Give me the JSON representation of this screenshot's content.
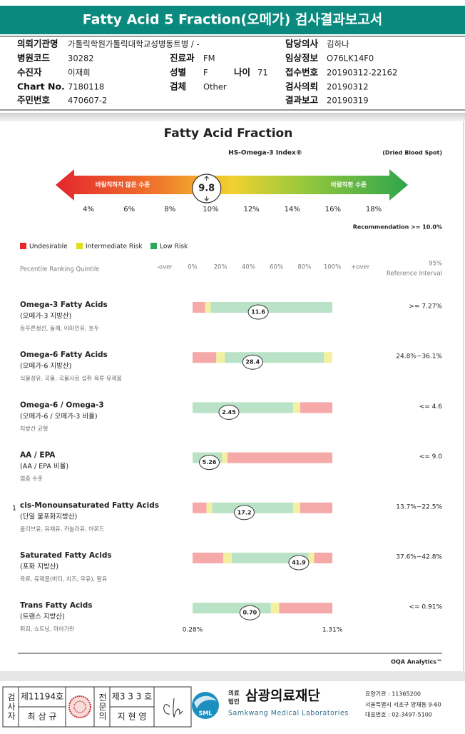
{
  "header": {
    "title": "Fatty Acid 5 Fraction(오메가) 검사결과보고서"
  },
  "info": [
    {
      "label": "의뢰기관명",
      "value": "가톨릭학원가톨릭대학교성병동트병 / -"
    },
    {
      "label": "담당의사",
      "value": "김하나"
    },
    {
      "label": "병원코드",
      "value": "30282"
    },
    {
      "label": "진료과",
      "value": "FM"
    },
    {
      "label": "임상정보",
      "value": "O76LK14F0"
    },
    {
      "label": "수진자",
      "value": "이재희"
    },
    {
      "label": "성별",
      "value": "F"
    },
    {
      "label": "나이",
      "value": "71"
    },
    {
      "label": "접수번호",
      "value": "20190312-22162"
    },
    {
      "label": "Chart No.",
      "value": "7180118"
    },
    {
      "label": "검체",
      "value": "Other"
    },
    {
      "label": "검사의뢰",
      "value": "20190312"
    },
    {
      "label": "주민번호",
      "value": "470607-2"
    },
    {
      "label": "결과보고",
      "value": "20190319"
    }
  ],
  "index_section": {
    "title": "Fatty Acid Fraction",
    "index_name": "HS-Omega-3 Index®",
    "sample": "(Dried Blood Spot)",
    "left_label": "바람직하지 않은 수준",
    "right_label": "바람직한 수준",
    "value": 9.8,
    "xlim": [
      4,
      18
    ],
    "ticks": [
      {
        "value": 4,
        "label": "4%"
      },
      {
        "value": 6,
        "label": "6%"
      },
      {
        "value": 8,
        "label": "8%"
      },
      {
        "value": 10,
        "label": "10%"
      },
      {
        "value": 12,
        "label": "12%"
      },
      {
        "value": 14,
        "label": "14%"
      },
      {
        "value": 16,
        "label": "16%"
      },
      {
        "value": 18,
        "label": "18%"
      }
    ],
    "recommendation": "Recommendation  >= 10.0%"
  },
  "legend": [
    {
      "label": "Undesirable",
      "color": "#e8282b"
    },
    {
      "label": "Intermediate Risk",
      "color": "#e3de1c"
    },
    {
      "label": "Low Risk",
      "color": "#2aa85a"
    }
  ],
  "table_header": {
    "ranking": "Pecentile Ranking Quintile",
    "axis": [
      {
        "value": -20,
        "label": "-over"
      },
      {
        "value": 0,
        "label": "0%"
      },
      {
        "value": 20,
        "label": "20%"
      },
      {
        "value": 40,
        "label": "40%"
      },
      {
        "value": 60,
        "label": "60%"
      },
      {
        "value": 80,
        "label": "80%"
      },
      {
        "value": 100,
        "label": "100%"
      },
      {
        "value": 120,
        "label": "+over"
      }
    ],
    "reference_top": "95%",
    "reference": "Reference Interval"
  },
  "rows": [
    {
      "name": "Omega-3 Fatty Acids",
      "korean": "(오메가-3 지방산)",
      "foods": "등푸른생선, 들깨, 아마인유, 호두",
      "zones": [
        {
          "color": "#f6a9a9",
          "from": 0,
          "to": 9
        },
        {
          "color": "#f3f1a1",
          "from": 9,
          "to": 13
        },
        {
          "color": "#b9e2c6",
          "from": 13,
          "to": 100
        }
      ],
      "value": 11.6,
      "percentile": 47,
      "reference": ">= 7.27%"
    },
    {
      "name": "Omega-6 Fatty Acids",
      "korean": "(오메가-6 지방산)",
      "foods": "식물성유, 곡물, 곡물사료 섭취 육류·유제품",
      "zones": [
        {
          "color": "#f6a9a9",
          "from": 0,
          "to": 17
        },
        {
          "color": "#f3f1a1",
          "from": 17,
          "to": 23
        },
        {
          "color": "#b9e2c6",
          "from": 23,
          "to": 94
        },
        {
          "color": "#f3f1a1",
          "from": 94,
          "to": 100
        }
      ],
      "value": 28.4,
      "percentile": 43,
      "reference": "24.8%~36.1%"
    },
    {
      "name": "Omega-6 / Omega-3",
      "korean": "(오메가-6 / 오메가-3 비율)",
      "foods": "지방산 균형",
      "zones": [
        {
          "color": "#b9e2c6",
          "from": 0,
          "to": 72
        },
        {
          "color": "#f3f1a1",
          "from": 72,
          "to": 77
        },
        {
          "color": "#f6a9a9",
          "from": 77,
          "to": 100
        }
      ],
      "value": 2.45,
      "percentile": 26,
      "reference": "<= 4.6"
    },
    {
      "name": "AA / EPA",
      "korean": "(AA / EPA 비율)",
      "foods": "염증 수준",
      "zones": [
        {
          "color": "#b9e2c6",
          "from": 0,
          "to": 21
        },
        {
          "color": "#f3f1a1",
          "from": 21,
          "to": 25
        },
        {
          "color": "#f6a9a9",
          "from": 25,
          "to": 100
        }
      ],
      "value": 5.26,
      "percentile": 12,
      "reference": "<= 9.0"
    },
    {
      "name": "cis-Monounsaturated Fatty Acids",
      "korean": "(단일 불포화지방산)",
      "foods": "올리브유, 유채유, 카놀라유, 아몬드",
      "note": "1",
      "zones": [
        {
          "color": "#f6a9a9",
          "from": 0,
          "to": 10
        },
        {
          "color": "#f3f1a1",
          "from": 10,
          "to": 14
        },
        {
          "color": "#b9e2c6",
          "from": 14,
          "to": 72
        },
        {
          "color": "#f3f1a1",
          "from": 72,
          "to": 77
        },
        {
          "color": "#f6a9a9",
          "from": 77,
          "to": 100
        }
      ],
      "value": 17.2,
      "percentile": 37,
      "reference": "13.7%~22.5%"
    },
    {
      "name": "Saturated Fatty Acids",
      "korean": "(포화 지방산)",
      "foods": "육류, 유제품(버터, 치즈, 우유), 팜유",
      "zones": [
        {
          "color": "#f6a9a9",
          "from": 0,
          "to": 22
        },
        {
          "color": "#f3f1a1",
          "from": 22,
          "to": 28
        },
        {
          "color": "#b9e2c6",
          "from": 28,
          "to": 83
        },
        {
          "color": "#f3f1a1",
          "from": 83,
          "to": 87
        },
        {
          "color": "#f6a9a9",
          "from": 87,
          "to": 100
        }
      ],
      "value": 41.9,
      "percentile": 76,
      "reference": "37.6%~42.8%"
    },
    {
      "name": "Trans Fatty Acids",
      "korean": "(트랜스 지방산)",
      "foods": "튀김, 쇼트닝, 마아가린",
      "zones": [
        {
          "color": "#b9e2c6",
          "from": 0,
          "to": 56
        },
        {
          "color": "#f3f1a1",
          "from": 56,
          "to": 62
        },
        {
          "color": "#f6a9a9",
          "from": 62,
          "to": 100
        }
      ],
      "value": 0.7,
      "value_label": "0.70",
      "percentile": 41,
      "reference": "<= 0.91%",
      "scale_min": "0.28%",
      "scale_max": "1.31%"
    }
  ],
  "footer_note": "OQA Analytics™",
  "signature": {
    "examiner_role": "검사자",
    "examiner_no": "제11194호",
    "examiner_name": "최 삼 규",
    "doctor_role": "전문의",
    "doctor_no": "제3 3 3 호",
    "doctor_name": "지 현 영"
  },
  "institution": {
    "logo": "SML",
    "corp_type": [
      "의료",
      "법인"
    ],
    "name": "삼광의료재단",
    "english_name": "Samkwang Medical Laboratories",
    "code": "요양기관 : 11365200",
    "address": "서울특별시 서초구 양재동 9-60",
    "phone": "대표번호 : 02-3497-5100"
  }
}
